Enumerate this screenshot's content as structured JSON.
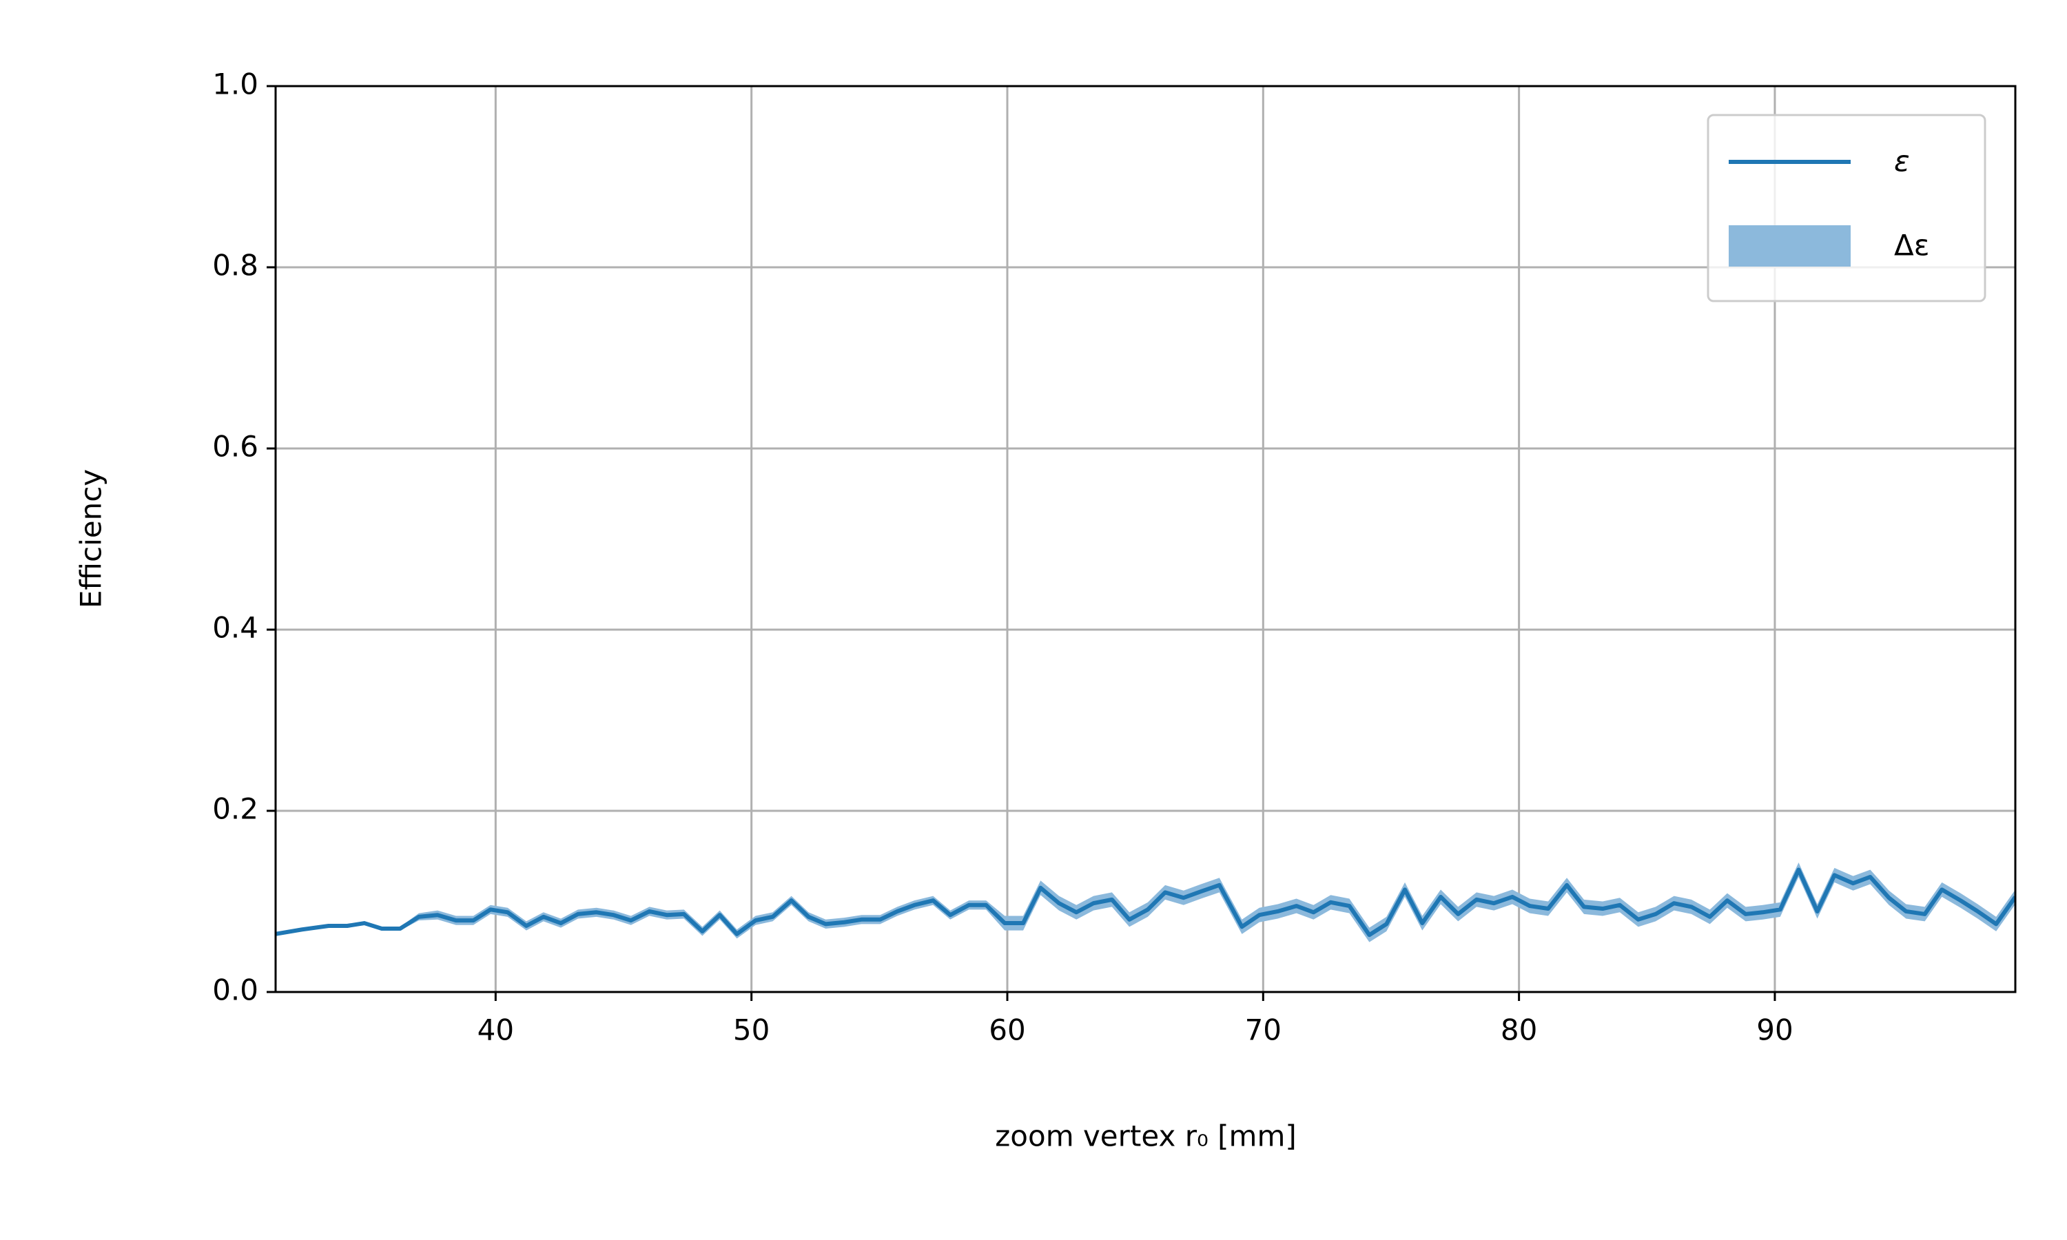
{
  "chart_data": {
    "type": "line",
    "xlabel": "zoom vertex r₀ [mm]",
    "ylabel": "Efficiency",
    "x": [
      31.4,
      32.44,
      33.47,
      34.2,
      34.87,
      35.55,
      36.27,
      37.0,
      37.73,
      38.45,
      39.13,
      39.8,
      40.47,
      41.2,
      41.87,
      42.55,
      43.22,
      43.94,
      44.61,
      45.29,
      46.01,
      46.69,
      47.36,
      48.08,
      48.76,
      49.43,
      50.16,
      50.83,
      51.56,
      52.23,
      52.9,
      53.63,
      54.3,
      55.03,
      55.7,
      56.37,
      57.1,
      57.77,
      58.5,
      59.17,
      59.9,
      60.62,
      61.3,
      62.02,
      62.7,
      63.37,
      64.09,
      64.77,
      65.49,
      66.17,
      66.89,
      67.57,
      68.29,
      69.17,
      69.85,
      70.57,
      71.3,
      71.97,
      72.64,
      73.37,
      74.15,
      74.82,
      75.54,
      76.22,
      76.94,
      77.62,
      78.34,
      79.02,
      79.74,
      80.42,
      81.14,
      81.87,
      82.54,
      83.27,
      83.94,
      84.66,
      85.34,
      86.06,
      86.74,
      87.46,
      88.14,
      88.86,
      89.53,
      90.21,
      90.93,
      91.66,
      92.33,
      93.06,
      93.73,
      94.46,
      95.13,
      95.86,
      96.53,
      97.26,
      97.93,
      98.65,
      99.4
    ],
    "series": [
      {
        "name": "ε",
        "error_name": "Δε",
        "color": "#1f77b4",
        "error_color": "#8cb9dc",
        "values": [
          0.064,
          0.069,
          0.073,
          0.073,
          0.076,
          0.07,
          0.07,
          0.083,
          0.085,
          0.079,
          0.079,
          0.091,
          0.088,
          0.073,
          0.083,
          0.076,
          0.086,
          0.088,
          0.085,
          0.079,
          0.089,
          0.085,
          0.086,
          0.067,
          0.085,
          0.064,
          0.079,
          0.083,
          0.101,
          0.083,
          0.075,
          0.077,
          0.08,
          0.08,
          0.089,
          0.096,
          0.101,
          0.085,
          0.096,
          0.096,
          0.076,
          0.076,
          0.115,
          0.098,
          0.088,
          0.098,
          0.102,
          0.08,
          0.091,
          0.11,
          0.104,
          0.111,
          0.118,
          0.072,
          0.085,
          0.089,
          0.095,
          0.088,
          0.099,
          0.095,
          0.063,
          0.075,
          0.113,
          0.076,
          0.105,
          0.086,
          0.102,
          0.098,
          0.105,
          0.095,
          0.092,
          0.118,
          0.094,
          0.092,
          0.096,
          0.08,
          0.086,
          0.098,
          0.094,
          0.083,
          0.101,
          0.086,
          0.088,
          0.091,
          0.135,
          0.089,
          0.129,
          0.12,
          0.127,
          0.104,
          0.089,
          0.086,
          0.113,
          0.101,
          0.089,
          0.075,
          0.105
        ],
        "errors": [
          0.002,
          0.002,
          0.002,
          0.002,
          0.002,
          0.002,
          0.002,
          0.004,
          0.005,
          0.005,
          0.005,
          0.005,
          0.005,
          0.005,
          0.005,
          0.005,
          0.005,
          0.005,
          0.005,
          0.005,
          0.005,
          0.005,
          0.005,
          0.005,
          0.005,
          0.005,
          0.005,
          0.005,
          0.005,
          0.005,
          0.005,
          0.005,
          0.005,
          0.005,
          0.005,
          0.005,
          0.005,
          0.005,
          0.005,
          0.005,
          0.008,
          0.008,
          0.008,
          0.008,
          0.008,
          0.008,
          0.008,
          0.008,
          0.008,
          0.008,
          0.008,
          0.008,
          0.008,
          0.008,
          0.008,
          0.008,
          0.008,
          0.008,
          0.008,
          0.008,
          0.008,
          0.008,
          0.008,
          0.008,
          0.008,
          0.008,
          0.008,
          0.008,
          0.008,
          0.008,
          0.008,
          0.008,
          0.008,
          0.008,
          0.008,
          0.008,
          0.008,
          0.008,
          0.008,
          0.008,
          0.008,
          0.008,
          0.008,
          0.008,
          0.008,
          0.008,
          0.008,
          0.008,
          0.008,
          0.008,
          0.008,
          0.008,
          0.008,
          0.008,
          0.008,
          0.008,
          0.008
        ]
      }
    ],
    "xlim": [
      31.4,
      99.4
    ],
    "ylim": [
      0,
      1
    ],
    "xticks": [
      40,
      50,
      60,
      70,
      80,
      90
    ],
    "yticks": [
      {
        "value": 0,
        "label": "0.0"
      },
      0.2,
      0.4,
      0.6,
      0.8,
      {
        "value": 1,
        "label": "1.0"
      }
    ],
    "grid": true,
    "legend": "upper right"
  }
}
